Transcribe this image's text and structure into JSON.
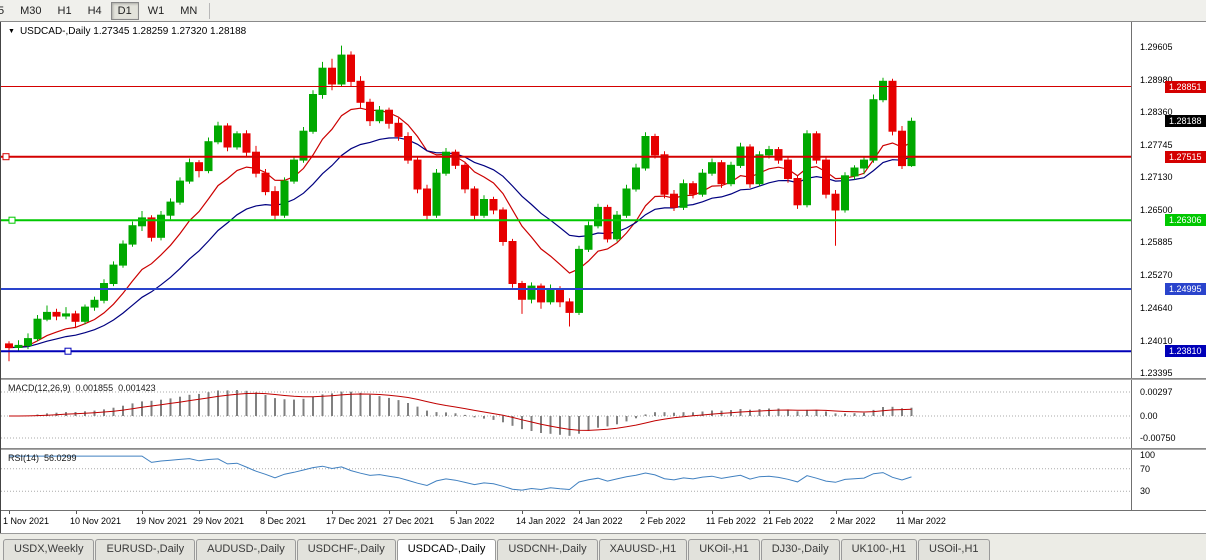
{
  "theme": {
    "bull_color": "#00a800",
    "bear_color": "#e60000",
    "macd_hist_color": "#808080",
    "macd_signal_color": "#c00000",
    "rsi_color": "#4080c0",
    "current_price_bg": "#000000"
  },
  "toolbar": {
    "timeframes": [
      {
        "label": "5",
        "active": false
      },
      {
        "label": "M30",
        "active": false
      },
      {
        "label": "H1",
        "active": false
      },
      {
        "label": "H4",
        "active": false
      },
      {
        "label": "D1",
        "active": true
      },
      {
        "label": "W1",
        "active": false
      },
      {
        "label": "MN",
        "active": false
      }
    ]
  },
  "chart": {
    "info_line": "USDCAD-,Daily 1.27345 1.28259 1.27320 1.28188",
    "price_axis_labels": [
      "1.29605",
      "1.28980",
      "1.28360",
      "1.27745",
      "1.27130",
      "1.26500",
      "1.25885",
      "1.25270",
      "1.24640",
      "1.24010",
      "1.23395"
    ],
    "hlines": [
      {
        "price": 1.28851,
        "label": "1.28851",
        "color": "#d40000",
        "width": 1,
        "handle_x": null
      },
      {
        "price": 1.27515,
        "label": "1.27515",
        "color": "#d40000",
        "width": 2,
        "handle_x": 2
      },
      {
        "price": 1.26306,
        "label": "1.26306",
        "color": "#00c800",
        "width": 2,
        "handle_x": 8
      },
      {
        "price": 1.24995,
        "label": "1.24995",
        "color": "#2a44cc",
        "width": 2,
        "handle_x": null
      },
      {
        "price": 1.2381,
        "label": "1.23810",
        "color": "#0000b8",
        "width": 2,
        "handle_x": 64
      }
    ],
    "current_price": {
      "value": 1.28188,
      "label": "1.28188"
    }
  },
  "macd": {
    "title": "MACD(12,26,9)",
    "value_main": "0.001855",
    "value_signal": "0.001423",
    "axis_labels": [
      "0.00297",
      "0.00",
      "-0.00750"
    ],
    "fast": 12,
    "slow": 26,
    "signal": 9
  },
  "rsi": {
    "title": "RSI(14)",
    "value": "56.0299",
    "period": 14,
    "axis_labels": [
      {
        "v": 100,
        "label": "100"
      },
      {
        "v": 70,
        "label": "70"
      },
      {
        "v": 30,
        "label": "30"
      }
    ],
    "levels": [
      70,
      30
    ]
  },
  "tab_bar": {
    "tabs": [
      {
        "label": "USDX,Weekly",
        "active": false
      },
      {
        "label": "EURUSD-,Daily",
        "active": false
      },
      {
        "label": "AUDUSD-,Daily",
        "active": false
      },
      {
        "label": "USDCHF-,Daily",
        "active": false
      },
      {
        "label": "USDCAD-,Daily",
        "active": true
      },
      {
        "label": "USDCNH-,Daily",
        "active": false
      },
      {
        "label": "XAUUSD-,H1",
        "active": false
      },
      {
        "label": "UKOil-,H1",
        "active": false
      },
      {
        "label": "DJ30-,Daily",
        "active": false
      },
      {
        "label": "UK100-,H1",
        "active": false
      },
      {
        "label": "USOil-,H1",
        "active": false
      }
    ]
  },
  "chart_data": {
    "type": "candlestick",
    "title": "USDCAD-,Daily",
    "ohlc_current": {
      "open": 1.27345,
      "high": 1.28259,
      "low": 1.2732,
      "close": 1.28188
    },
    "y_axis": {
      "min": 1.233,
      "max": 1.3008
    },
    "x_ticks": [
      {
        "index": 0,
        "label": "1 Nov 2021"
      },
      {
        "index": 7,
        "label": "10 Nov 2021"
      },
      {
        "index": 14,
        "label": "19 Nov 2021"
      },
      {
        "index": 20,
        "label": "29 Nov 2021"
      },
      {
        "index": 27,
        "label": "8 Dec 2021"
      },
      {
        "index": 34,
        "label": "17 Dec 2021"
      },
      {
        "index": 40,
        "label": "27 Dec 2021"
      },
      {
        "index": 47,
        "label": "5 Jan 2022"
      },
      {
        "index": 54,
        "label": "14 Jan 2022"
      },
      {
        "index": 60,
        "label": "24 Jan 2022"
      },
      {
        "index": 67,
        "label": "2 Feb 2022"
      },
      {
        "index": 74,
        "label": "11 Feb 2022"
      },
      {
        "index": 80,
        "label": "21 Feb 2022"
      },
      {
        "index": 87,
        "label": "2 Mar 2022"
      },
      {
        "index": 94,
        "label": "11 Mar 2022"
      }
    ],
    "overlays": [
      {
        "name": "ma-fast",
        "period": 10,
        "color": "#cc0000"
      },
      {
        "name": "ma-slow",
        "period": 21,
        "color": "#000080"
      }
    ],
    "candles": [
      [
        1.2395,
        1.24,
        1.2362,
        1.2388
      ],
      [
        1.2388,
        1.2402,
        1.238,
        1.2392
      ],
      [
        1.2392,
        1.2415,
        1.2385,
        1.2405
      ],
      [
        1.2405,
        1.245,
        1.24,
        1.2442
      ],
      [
        1.2442,
        1.2468,
        1.2438,
        1.2455
      ],
      [
        1.2455,
        1.2462,
        1.244,
        1.2448
      ],
      [
        1.2448,
        1.2465,
        1.2442,
        1.2452
      ],
      [
        1.2452,
        1.2458,
        1.2425,
        1.2438
      ],
      [
        1.2438,
        1.247,
        1.2432,
        1.2465
      ],
      [
        1.2465,
        1.2485,
        1.2458,
        1.2478
      ],
      [
        1.2478,
        1.2518,
        1.2472,
        1.251
      ],
      [
        1.251,
        1.2552,
        1.2505,
        1.2545
      ],
      [
        1.2545,
        1.2592,
        1.254,
        1.2585
      ],
      [
        1.2585,
        1.2628,
        1.258,
        1.262
      ],
      [
        1.262,
        1.2648,
        1.261,
        1.2635
      ],
      [
        1.2635,
        1.264,
        1.259,
        1.2598
      ],
      [
        1.2598,
        1.2648,
        1.2592,
        1.264
      ],
      [
        1.264,
        1.2672,
        1.2632,
        1.2665
      ],
      [
        1.2665,
        1.2712,
        1.266,
        1.2705
      ],
      [
        1.2705,
        1.2748,
        1.27,
        1.274
      ],
      [
        1.274,
        1.2745,
        1.2712,
        1.2725
      ],
      [
        1.2725,
        1.2788,
        1.272,
        1.278
      ],
      [
        1.278,
        1.2818,
        1.2775,
        1.281
      ],
      [
        1.281,
        1.2815,
        1.2762,
        1.277
      ],
      [
        1.277,
        1.28,
        1.2765,
        1.2795
      ],
      [
        1.2795,
        1.2802,
        1.2752,
        1.276
      ],
      [
        1.276,
        1.2772,
        1.2712,
        1.272
      ],
      [
        1.272,
        1.2728,
        1.2678,
        1.2685
      ],
      [
        1.2685,
        1.2695,
        1.2632,
        1.264
      ],
      [
        1.264,
        1.2712,
        1.2635,
        1.2705
      ],
      [
        1.2705,
        1.2752,
        1.27,
        1.2745
      ],
      [
        1.2745,
        1.2808,
        1.274,
        1.28
      ],
      [
        1.28,
        1.2878,
        1.2795,
        1.287
      ],
      [
        1.287,
        1.2932,
        1.2862,
        1.292
      ],
      [
        1.292,
        1.2938,
        1.2878,
        1.289
      ],
      [
        1.289,
        1.2963,
        1.2885,
        1.2945
      ],
      [
        1.2945,
        1.2952,
        1.2885,
        1.2895
      ],
      [
        1.2895,
        1.2905,
        1.2845,
        1.2855
      ],
      [
        1.2855,
        1.2862,
        1.281,
        1.282
      ],
      [
        1.282,
        1.2848,
        1.2815,
        1.284
      ],
      [
        1.284,
        1.2845,
        1.2805,
        1.2815
      ],
      [
        1.2815,
        1.2825,
        1.2782,
        1.279
      ],
      [
        1.279,
        1.2798,
        1.2738,
        1.2745
      ],
      [
        1.2745,
        1.2752,
        1.2682,
        1.269
      ],
      [
        1.269,
        1.2698,
        1.2632,
        1.264
      ],
      [
        1.264,
        1.2728,
        1.2635,
        1.272
      ],
      [
        1.272,
        1.2768,
        1.2715,
        1.276
      ],
      [
        1.276,
        1.2765,
        1.2728,
        1.2735
      ],
      [
        1.2735,
        1.2742,
        1.2682,
        1.269
      ],
      [
        1.269,
        1.2695,
        1.2632,
        1.264
      ],
      [
        1.264,
        1.2678,
        1.2635,
        1.267
      ],
      [
        1.267,
        1.2675,
        1.2642,
        1.265
      ],
      [
        1.265,
        1.2655,
        1.2582,
        1.259
      ],
      [
        1.259,
        1.2595,
        1.2502,
        1.251
      ],
      [
        1.251,
        1.2515,
        1.2452,
        1.248
      ],
      [
        1.248,
        1.2512,
        1.2472,
        1.2505
      ],
      [
        1.2505,
        1.251,
        1.2462,
        1.2475
      ],
      [
        1.2475,
        1.2508,
        1.247,
        1.25
      ],
      [
        1.25,
        1.2505,
        1.2465,
        1.2475
      ],
      [
        1.2475,
        1.2482,
        1.2428,
        1.2455
      ],
      [
        1.2455,
        1.2582,
        1.245,
        1.2575
      ],
      [
        1.2575,
        1.2628,
        1.257,
        1.262
      ],
      [
        1.262,
        1.2662,
        1.2615,
        1.2655
      ],
      [
        1.2655,
        1.266,
        1.2588,
        1.2595
      ],
      [
        1.2595,
        1.2648,
        1.259,
        1.264
      ],
      [
        1.264,
        1.2698,
        1.2635,
        1.269
      ],
      [
        1.269,
        1.2738,
        1.2685,
        1.273
      ],
      [
        1.273,
        1.2798,
        1.2725,
        1.279
      ],
      [
        1.279,
        1.2795,
        1.2748,
        1.2755
      ],
      [
        1.2755,
        1.2762,
        1.2672,
        1.268
      ],
      [
        1.268,
        1.2688,
        1.2648,
        1.2655
      ],
      [
        1.2655,
        1.2708,
        1.265,
        1.27
      ],
      [
        1.27,
        1.2705,
        1.2672,
        1.268
      ],
      [
        1.268,
        1.2728,
        1.2675,
        1.272
      ],
      [
        1.272,
        1.2748,
        1.2715,
        1.274
      ],
      [
        1.274,
        1.2745,
        1.2692,
        1.27
      ],
      [
        1.27,
        1.2742,
        1.2695,
        1.2735
      ],
      [
        1.2735,
        1.2778,
        1.273,
        1.277
      ],
      [
        1.277,
        1.2775,
        1.2692,
        1.27
      ],
      [
        1.27,
        1.2762,
        1.2695,
        1.2755
      ],
      [
        1.2755,
        1.2772,
        1.2748,
        1.2765
      ],
      [
        1.2765,
        1.277,
        1.2738,
        1.2745
      ],
      [
        1.2745,
        1.2752,
        1.2702,
        1.271
      ],
      [
        1.271,
        1.2715,
        1.2652,
        1.266
      ],
      [
        1.266,
        1.2802,
        1.2655,
        1.2795
      ],
      [
        1.2795,
        1.28,
        1.2738,
        1.2745
      ],
      [
        1.2745,
        1.2752,
        1.2672,
        1.268
      ],
      [
        1.268,
        1.2688,
        1.2582,
        1.265
      ],
      [
        1.265,
        1.2722,
        1.2645,
        1.2715
      ],
      [
        1.2715,
        1.2735,
        1.2708,
        1.273
      ],
      [
        1.273,
        1.2752,
        1.2718,
        1.2745
      ],
      [
        1.2745,
        1.287,
        1.274,
        1.286
      ],
      [
        1.286,
        1.2902,
        1.2855,
        1.2895
      ],
      [
        1.2895,
        1.29,
        1.2792,
        1.28
      ],
      [
        1.28,
        1.281,
        1.2728,
        1.27345
      ],
      [
        1.27345,
        1.28259,
        1.2732,
        1.28188
      ]
    ]
  }
}
